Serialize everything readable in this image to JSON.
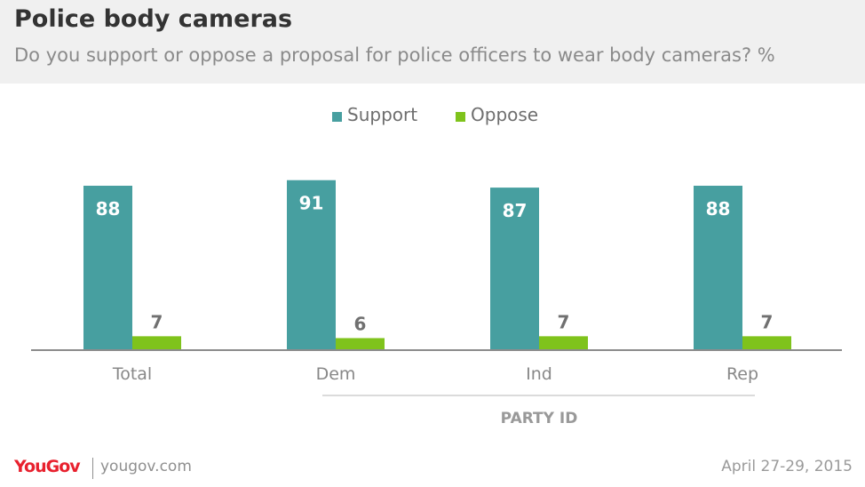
{
  "header": {
    "title": "Police body cameras",
    "subtitle": "Do you support or oppose a proposal for police officers to wear body cameras? %"
  },
  "colors": {
    "support": "#479fa0",
    "oppose": "#7fc31c",
    "axis": "#8c8c8c",
    "value_label_inside": "#ffffff",
    "value_label_outside": "#707070",
    "category_label": "#888888",
    "brand": "#e8212e"
  },
  "chart_data": {
    "type": "bar",
    "categories": [
      "Total",
      "Dem",
      "Ind",
      "Rep"
    ],
    "series": [
      {
        "name": "Support",
        "values": [
          88,
          91,
          87,
          88
        ]
      },
      {
        "name": "Oppose",
        "values": [
          7,
          6,
          7,
          7
        ]
      }
    ],
    "ylim": [
      0,
      100
    ],
    "group_label": "PARTY ID",
    "grouped_categories": [
      "Dem",
      "Ind",
      "Rep"
    ],
    "legend_position": "top-center",
    "grid": false
  },
  "footer": {
    "brand": "YouGov",
    "url": "yougov.com",
    "date": "April 27-29, 2015"
  }
}
